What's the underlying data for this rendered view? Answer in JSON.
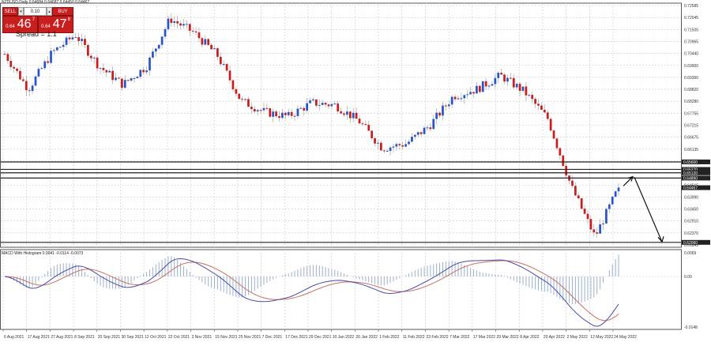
{
  "header": {
    "symbol_line": "NZDUSD,Daily  0.64684 0.64687 0.64450 0.64467"
  },
  "trade_panel": {
    "sell_label": "SELL",
    "buy_label": "BUY",
    "lot_value": "0.10",
    "sell_price_prefix": "0.64",
    "sell_price_big": "46",
    "sell_price_sup": "7",
    "buy_price_prefix": "0.64",
    "buy_price_big": "47",
    "buy_price_sup": "8",
    "spread_text": "Spread = 1.1"
  },
  "macd_title": "MACD With Histogram 0.0041 -0.0114 -0.0073",
  "colors": {
    "bull": "#2a55c8",
    "bear": "#c81e1e",
    "macd_line": "#4a4aa8",
    "signal_line": "#c87060",
    "histogram": "#9ab0cc",
    "grid": "#c8c8c8",
    "hline": "#222222"
  },
  "chart_data": [
    {
      "type": "candlestick",
      "title": "NZDUSD,Daily",
      "xlabel": "",
      "ylabel": "",
      "ylim": [
        0.61845,
        0.72585
      ],
      "grid": true,
      "y_ticks": [
        "0.72585",
        "0.72045",
        "0.71505",
        "0.70965",
        "0.70440",
        "0.69900",
        "0.69360",
        "0.68820",
        "0.68280",
        "0.67755",
        "0.67215",
        "0.66675",
        "0.66135",
        "0.65595",
        "0.65055",
        "0.64515",
        "0.63990",
        "0.63450",
        "0.62910",
        "0.62370",
        "0.61845"
      ],
      "x_ticks": [
        "6 Aug 2021",
        "17 Aug 2021",
        "27 Aug 2021",
        "8 Sep 2021",
        "20 Sep 2021",
        "30 Sep 2021",
        "12 Oct 2021",
        "22 Oct 2021",
        "3 Nov 2021",
        "15 Nov 2021",
        "25 Nov 2021",
        "7 Dec 2021",
        "17 Dec 2021",
        "29 Dec 2021",
        "10 Jan 2022",
        "20 Jan 2022",
        "1 Feb 2022",
        "11 Feb 2022",
        "23 Feb 2022",
        "7 Mar 2022",
        "17 Mar 2022",
        "29 Mar 2022",
        "8 Apr 2022",
        "20 Apr 2022",
        "2 May 2022",
        "12 May 2022",
        "24 May 2022"
      ],
      "price_labels": [
        {
          "value": "0.65600",
          "kind": "horizontal-line"
        },
        {
          "value": "0.65270",
          "kind": "horizontal-line"
        },
        {
          "value": "0.65120",
          "kind": "horizontal-line"
        },
        {
          "value": "0.64890",
          "kind": "horizontal-line"
        },
        {
          "value": "0.64467",
          "kind": "current-price"
        },
        {
          "value": "0.62060",
          "kind": "horizontal-line"
        }
      ],
      "annotations": [
        {
          "type": "arrow",
          "direction": "up",
          "description": "short rise toward 0.649 resistance"
        },
        {
          "type": "arrow",
          "direction": "down",
          "description": "projected decline to ~0.620 support"
        }
      ],
      "close_path_approx": [
        {
          "date": "6 Aug 2021",
          "close": 0.7035
        },
        {
          "date": "17 Aug 2021",
          "close": 0.688
        },
        {
          "date": "27 Aug 2021",
          "close": 0.704
        },
        {
          "date": "8 Sep 2021",
          "close": 0.712
        },
        {
          "date": "20 Sep 2021",
          "close": 0.698
        },
        {
          "date": "30 Sep 2021",
          "close": 0.69
        },
        {
          "date": "12 Oct 2021",
          "close": 0.698
        },
        {
          "date": "22 Oct 2021",
          "close": 0.719
        },
        {
          "date": "3 Nov 2021",
          "close": 0.713
        },
        {
          "date": "15 Nov 2021",
          "close": 0.703
        },
        {
          "date": "25 Nov 2021",
          "close": 0.683
        },
        {
          "date": "7 Dec 2021",
          "close": 0.678
        },
        {
          "date": "17 Dec 2021",
          "close": 0.676
        },
        {
          "date": "29 Dec 2021",
          "close": 0.682
        },
        {
          "date": "10 Jan 2022",
          "close": 0.681
        },
        {
          "date": "20 Jan 2022",
          "close": 0.674
        },
        {
          "date": "1 Feb 2022",
          "close": 0.662
        },
        {
          "date": "11 Feb 2022",
          "close": 0.664
        },
        {
          "date": "23 Feb 2022",
          "close": 0.672
        },
        {
          "date": "7 Mar 2022",
          "close": 0.685
        },
        {
          "date": "17 Mar 2022",
          "close": 0.688
        },
        {
          "date": "29 Mar 2022",
          "close": 0.694
        },
        {
          "date": "8 Apr 2022",
          "close": 0.687
        },
        {
          "date": "20 Apr 2022",
          "close": 0.675
        },
        {
          "date": "2 May 2022",
          "close": 0.645
        },
        {
          "date": "12 May 2022",
          "close": 0.623
        },
        {
          "date": "24 May 2022",
          "close": 0.6447
        }
      ]
    },
    {
      "type": "line",
      "title": "MACD With Histogram 0.0041 -0.0114 -0.0073",
      "ylim": [
        -0.0148,
        0.0069
      ],
      "y_ticks": [
        "0.0069",
        "0.00",
        "-0.0148"
      ],
      "series": [
        {
          "name": "MACD",
          "color": "#4a4aa8"
        },
        {
          "name": "Signal",
          "color": "#c87060"
        },
        {
          "name": "Histogram",
          "color": "#9ab0cc",
          "type": "bar"
        }
      ],
      "values_last": {
        "histogram": 0.0041,
        "macd": -0.0114,
        "signal": -0.0073
      }
    }
  ]
}
